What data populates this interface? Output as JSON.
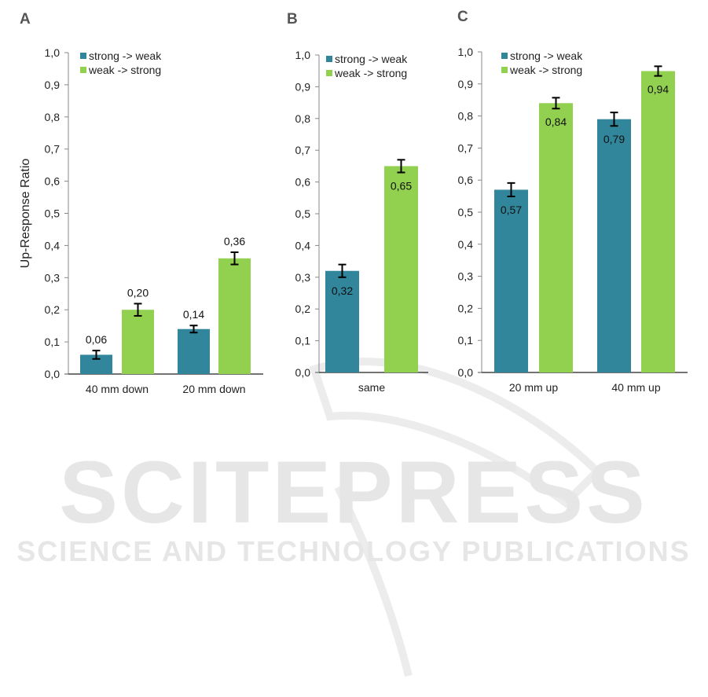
{
  "watermark": {
    "title": "SCITEPRESS",
    "subtitle": "SCIENCE AND TECHNOLOGY PUBLICATIONS"
  },
  "colors": {
    "strong_to_weak": "#31869b",
    "weak_to_strong": "#92d050"
  },
  "chart_data": [
    {
      "type": "bar",
      "panel": "A",
      "ylabel": "Up-Response Ratio",
      "ylim": [
        0,
        1.0
      ],
      "yticks": [
        "0,0",
        "0,1",
        "0,2",
        "0,3",
        "0,4",
        "0,5",
        "0,6",
        "0,7",
        "0,8",
        "0,9",
        "1,0"
      ],
      "categories": [
        "40 mm down",
        "20 mm down"
      ],
      "legend": [
        "strong -> weak",
        "weak -> strong"
      ],
      "legend_position": "top-left",
      "label_position": "above",
      "series": [
        {
          "name": "strong -> weak",
          "values": [
            0.06,
            0.14
          ],
          "errors": [
            0.013,
            0.011
          ],
          "labels": [
            "0,06",
            "0,14"
          ]
        },
        {
          "name": "weak -> strong",
          "values": [
            0.2,
            0.36
          ],
          "errors": [
            0.019,
            0.019
          ],
          "labels": [
            "0,20",
            "0,36"
          ]
        }
      ]
    },
    {
      "type": "bar",
      "panel": "B",
      "ylabel": "",
      "ylim": [
        0,
        1.0
      ],
      "yticks": [
        "0,0",
        "0,1",
        "0,2",
        "0,3",
        "0,4",
        "0,5",
        "0,6",
        "0,7",
        "0,8",
        "0,9",
        "1,0"
      ],
      "categories": [
        "same"
      ],
      "legend": [
        "strong -> weak",
        "weak -> strong"
      ],
      "legend_position": "top-left",
      "label_position": "inside",
      "series": [
        {
          "name": "strong -> weak",
          "values": [
            0.32
          ],
          "errors": [
            0.02
          ],
          "labels": [
            "0,32"
          ]
        },
        {
          "name": "weak -> strong",
          "values": [
            0.65
          ],
          "errors": [
            0.02
          ],
          "labels": [
            "0,65"
          ]
        }
      ]
    },
    {
      "type": "bar",
      "panel": "C",
      "ylabel": "",
      "ylim": [
        0,
        1.0
      ],
      "yticks": [
        "0,0",
        "0,1",
        "0,2",
        "0,3",
        "0,4",
        "0,5",
        "0,6",
        "0,7",
        "0,8",
        "0,9",
        "1,0"
      ],
      "categories": [
        "20 mm up",
        "40 mm up"
      ],
      "legend": [
        "strong -> weak",
        "weak -> strong"
      ],
      "legend_position": "top-left",
      "label_position": "inside",
      "series": [
        {
          "name": "strong -> weak",
          "values": [
            0.57,
            0.79
          ],
          "errors": [
            0.021,
            0.021
          ],
          "labels": [
            "0,57",
            "0,79"
          ]
        },
        {
          "name": "weak -> strong",
          "values": [
            0.84,
            0.94
          ],
          "errors": [
            0.017,
            0.015
          ],
          "labels": [
            "0,84",
            "0,94"
          ]
        }
      ]
    }
  ]
}
